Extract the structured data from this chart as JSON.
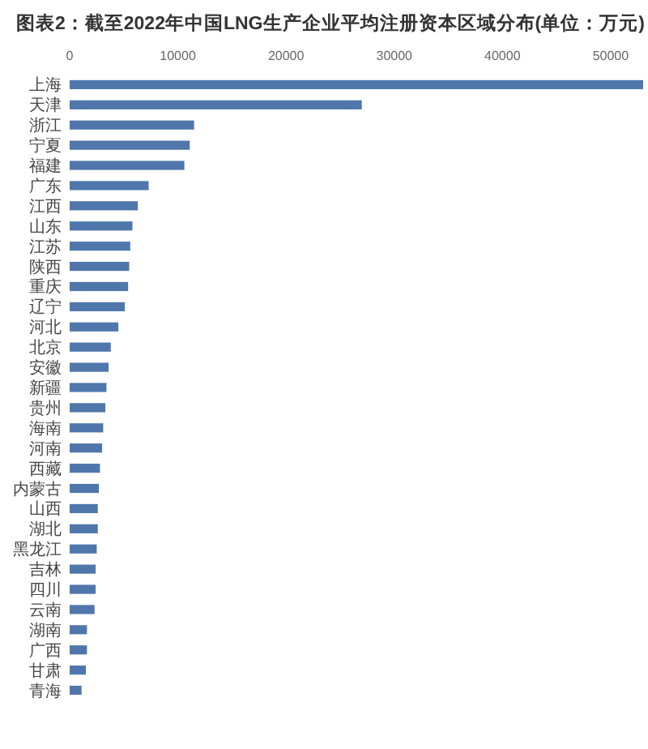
{
  "chart_data": {
    "type": "bar",
    "orientation": "horizontal",
    "title": "图表2：截至2022年中国LNG生产企业平均注册资本区域分布(单位：万元)",
    "categories": [
      "上海",
      "天津",
      "浙江",
      "宁夏",
      "福建",
      "广东",
      "江西",
      "山东",
      "江苏",
      "陕西",
      "重庆",
      "辽宁",
      "河北",
      "北京",
      "安徽",
      "新疆",
      "贵州",
      "海南",
      "河南",
      "西藏",
      "内蒙古",
      "山西",
      "湖北",
      "黑龙江",
      "吉林",
      "四川",
      "云南",
      "湖南",
      "广西",
      "甘肃",
      "青海"
    ],
    "values": [
      53000,
      27000,
      11500,
      11100,
      10600,
      7300,
      6300,
      5800,
      5600,
      5500,
      5400,
      5100,
      4500,
      3800,
      3600,
      3400,
      3300,
      3100,
      3000,
      2800,
      2700,
      2600,
      2600,
      2500,
      2400,
      2400,
      2300,
      1600,
      1600,
      1500,
      1100
    ],
    "color": "#4f77ab",
    "xlim": [
      0,
      53000
    ],
    "xticks": [
      0,
      10000,
      20000,
      30000,
      40000,
      50000
    ]
  }
}
